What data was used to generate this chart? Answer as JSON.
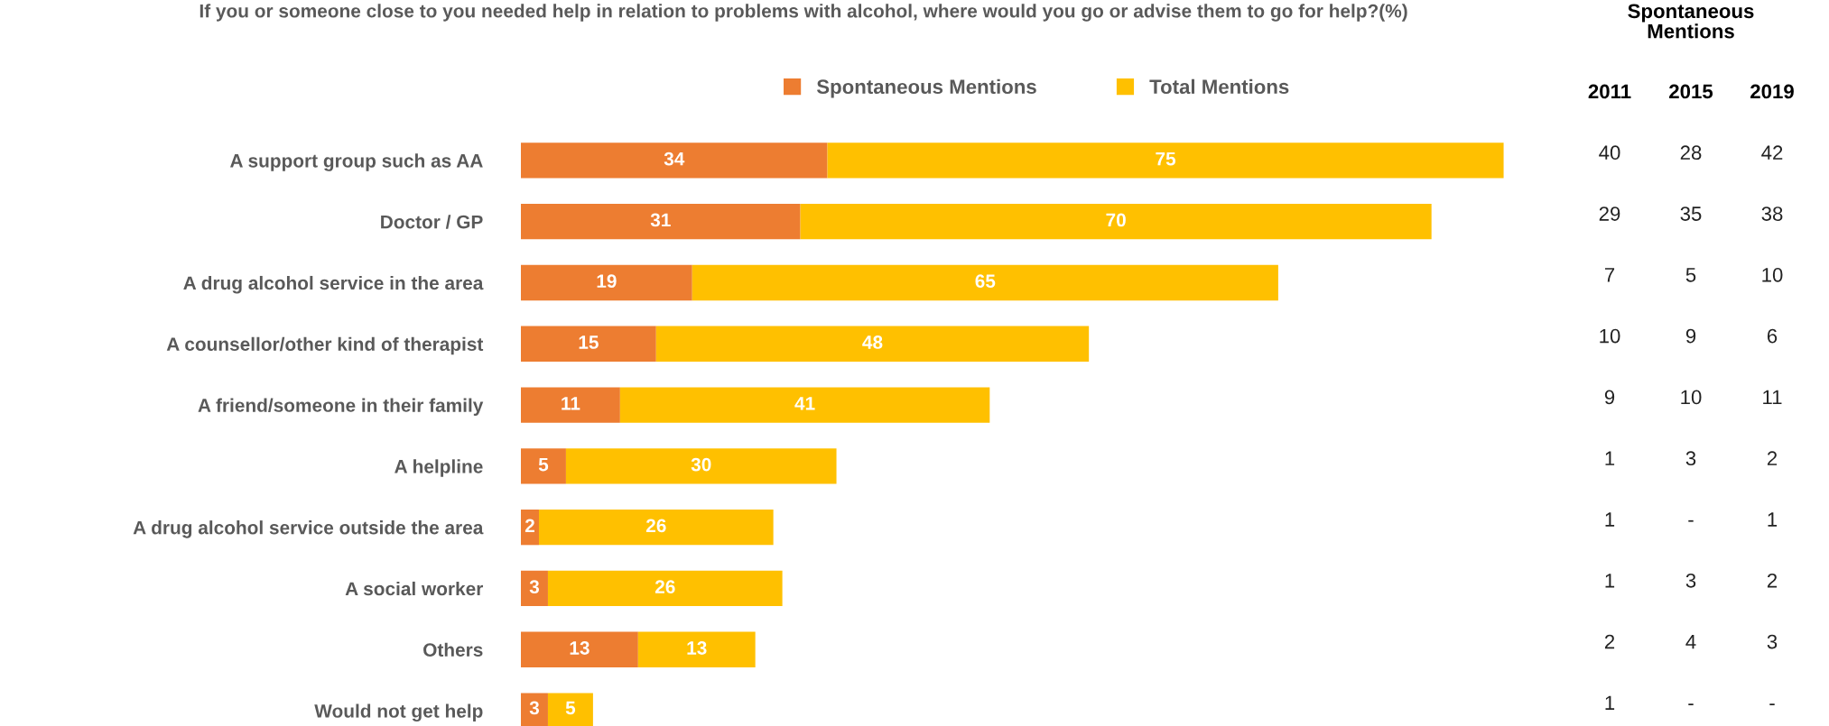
{
  "chart_data": [
    {
      "type": "bar",
      "orientation": "horizontal",
      "stacked": true,
      "data_labels": true,
      "legend": "top",
      "tick_labels": "y",
      "grid": false,
      "title": "If you or someone close to you needed help in relation to problems with alcohol, where would you go or advise them to go for help?(%)",
      "categories": [
        "A support group such as AA",
        "Doctor / GP",
        "A drug alcohol service in the area",
        "A counsellor/other kind of therapist",
        "A friend/someone in their family",
        "A helpline",
        "A drug alcohol service outside the area",
        "A social worker",
        "Others",
        "Would not get help"
      ],
      "series": [
        {
          "name": "Spontaneous Mentions",
          "color": "#ed7d31",
          "values": [
            34,
            31,
            19,
            15,
            11,
            5,
            2,
            3,
            13,
            3
          ]
        },
        {
          "name": "Total Mentions",
          "color": "#ffc000",
          "values": [
            75,
            70,
            65,
            48,
            41,
            30,
            26,
            26,
            13,
            5
          ]
        }
      ]
    },
    {
      "type": "other",
      "title": "Spontaneous Mentions",
      "categories": [
        "2011",
        "2015",
        "2019"
      ],
      "cell_labels": [
        [
          "40",
          "28",
          "42"
        ],
        [
          "29",
          "35",
          "38"
        ],
        [
          "7",
          "5",
          "10"
        ],
        [
          "10",
          "9",
          "6"
        ],
        [
          "9",
          "10",
          "11"
        ],
        [
          "1",
          "3",
          "2"
        ],
        [
          "1",
          "-",
          "1"
        ],
        [
          "1",
          "3",
          "2"
        ],
        [
          "2",
          "4",
          "3"
        ],
        [
          "1",
          "-",
          "-"
        ]
      ]
    }
  ]
}
